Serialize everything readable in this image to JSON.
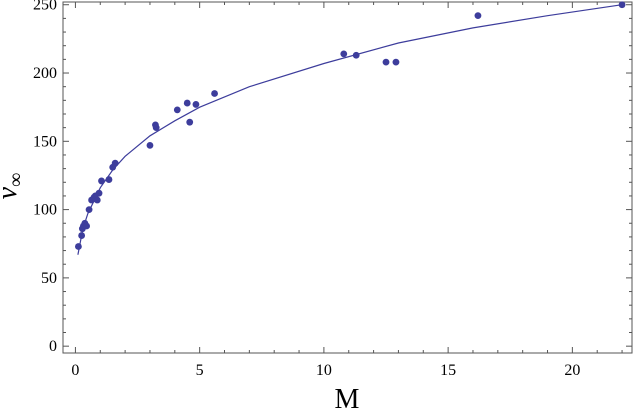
{
  "chart_data": {
    "type": "scatter",
    "xlabel": "M",
    "ylabel": "v",
    "ylabel_subscript": "∞",
    "xlim": [
      -0.5,
      22.4
    ],
    "ylim": [
      -5,
      252
    ],
    "x_ticks": [
      0,
      5,
      10,
      15,
      20
    ],
    "y_ticks": [
      0,
      50,
      100,
      150,
      200,
      250
    ],
    "grid": false,
    "frame": "box",
    "point_color": "#3d3d9c",
    "curve_color": "#3d3d9c",
    "series": [
      {
        "kind": "points",
        "x": [
          0.12,
          0.25,
          0.28,
          0.32,
          0.38,
          0.45,
          0.55,
          0.65,
          0.75,
          0.8,
          0.88,
          0.95,
          1.05,
          1.35,
          1.5,
          1.6,
          3.0,
          3.22,
          3.25,
          4.1,
          4.5,
          4.6,
          4.85,
          5.6,
          10.8,
          11.3,
          12.5,
          12.9,
          16.2,
          22.0
        ],
        "y": [
          73,
          81,
          86,
          88,
          90,
          88,
          100,
          107,
          109,
          110,
          107,
          112,
          121,
          122,
          131,
          134,
          147,
          162,
          160,
          173,
          178,
          164,
          177,
          185,
          214,
          213,
          208,
          208,
          242,
          250
        ]
      },
      {
        "kind": "fit-curve",
        "x": [
          0.1,
          0.3,
          0.5,
          1,
          1.5,
          2,
          3,
          4,
          5,
          7,
          10,
          13,
          16,
          19,
          22
        ],
        "y": [
          67,
          86,
          97,
          116,
          129,
          139,
          154,
          165,
          175,
          190,
          207,
          222,
          233,
          242,
          250
        ]
      }
    ]
  }
}
